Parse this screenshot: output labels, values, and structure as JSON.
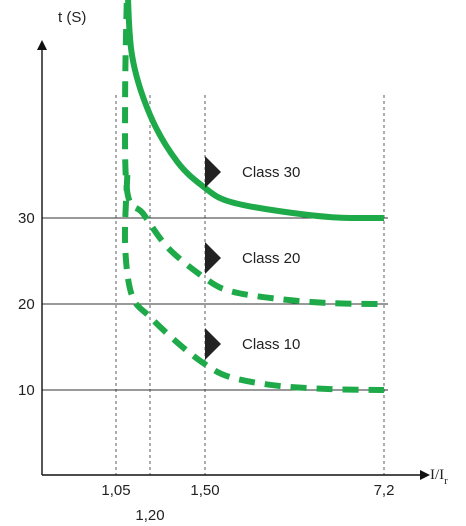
{
  "chart_data": {
    "type": "line",
    "title": "",
    "ylabel": "t (S)",
    "xlabel": {
      "main": "I/I",
      "subscript": "r"
    },
    "y_ticks": [
      {
        "value": 10,
        "label": "10"
      },
      {
        "value": 20,
        "label": "20"
      },
      {
        "value": 30,
        "label": "30"
      }
    ],
    "x_ticks": [
      {
        "value": 1.05,
        "label": "1,05"
      },
      {
        "value": 1.2,
        "label": "1,20"
      },
      {
        "value": 1.5,
        "label": "1,50"
      },
      {
        "value": 7.2,
        "label": "7,2"
      }
    ],
    "series": [
      {
        "name": "Class 30",
        "style": "solid",
        "points": [
          [
            1.1,
            58
          ],
          [
            1.12,
            49
          ],
          [
            1.2,
            42
          ],
          [
            1.35,
            36.5
          ],
          [
            1.5,
            33.5
          ],
          [
            2.2,
            32
          ],
          [
            3.5,
            31
          ],
          [
            5.5,
            30.1
          ],
          [
            7.2,
            30
          ]
        ]
      },
      {
        "name": "Class 20",
        "style": "dashed",
        "points": [
          [
            1.1,
            58
          ],
          [
            1.09,
            44
          ],
          [
            1.1,
            33
          ],
          [
            1.17,
            30.5
          ],
          [
            1.3,
            26.5
          ],
          [
            1.5,
            23
          ],
          [
            2.3,
            21.5
          ],
          [
            3.8,
            20.6
          ],
          [
            5.5,
            20.1
          ],
          [
            7.2,
            20
          ]
        ]
      },
      {
        "name": "Class 10",
        "style": "dashed",
        "points": [
          [
            1.1,
            35
          ],
          [
            1.09,
            27
          ],
          [
            1.12,
            21
          ],
          [
            1.2,
            18.5
          ],
          [
            1.35,
            15.5
          ],
          [
            1.5,
            13
          ],
          [
            2.3,
            11.5
          ],
          [
            3.8,
            10.5
          ],
          [
            5.5,
            10.1
          ],
          [
            7.2,
            10
          ]
        ]
      }
    ],
    "color": "#1faa4a",
    "grid": {
      "x": true,
      "y": true
    },
    "x_scale": "nonlinear (tick positions as drawn)"
  }
}
